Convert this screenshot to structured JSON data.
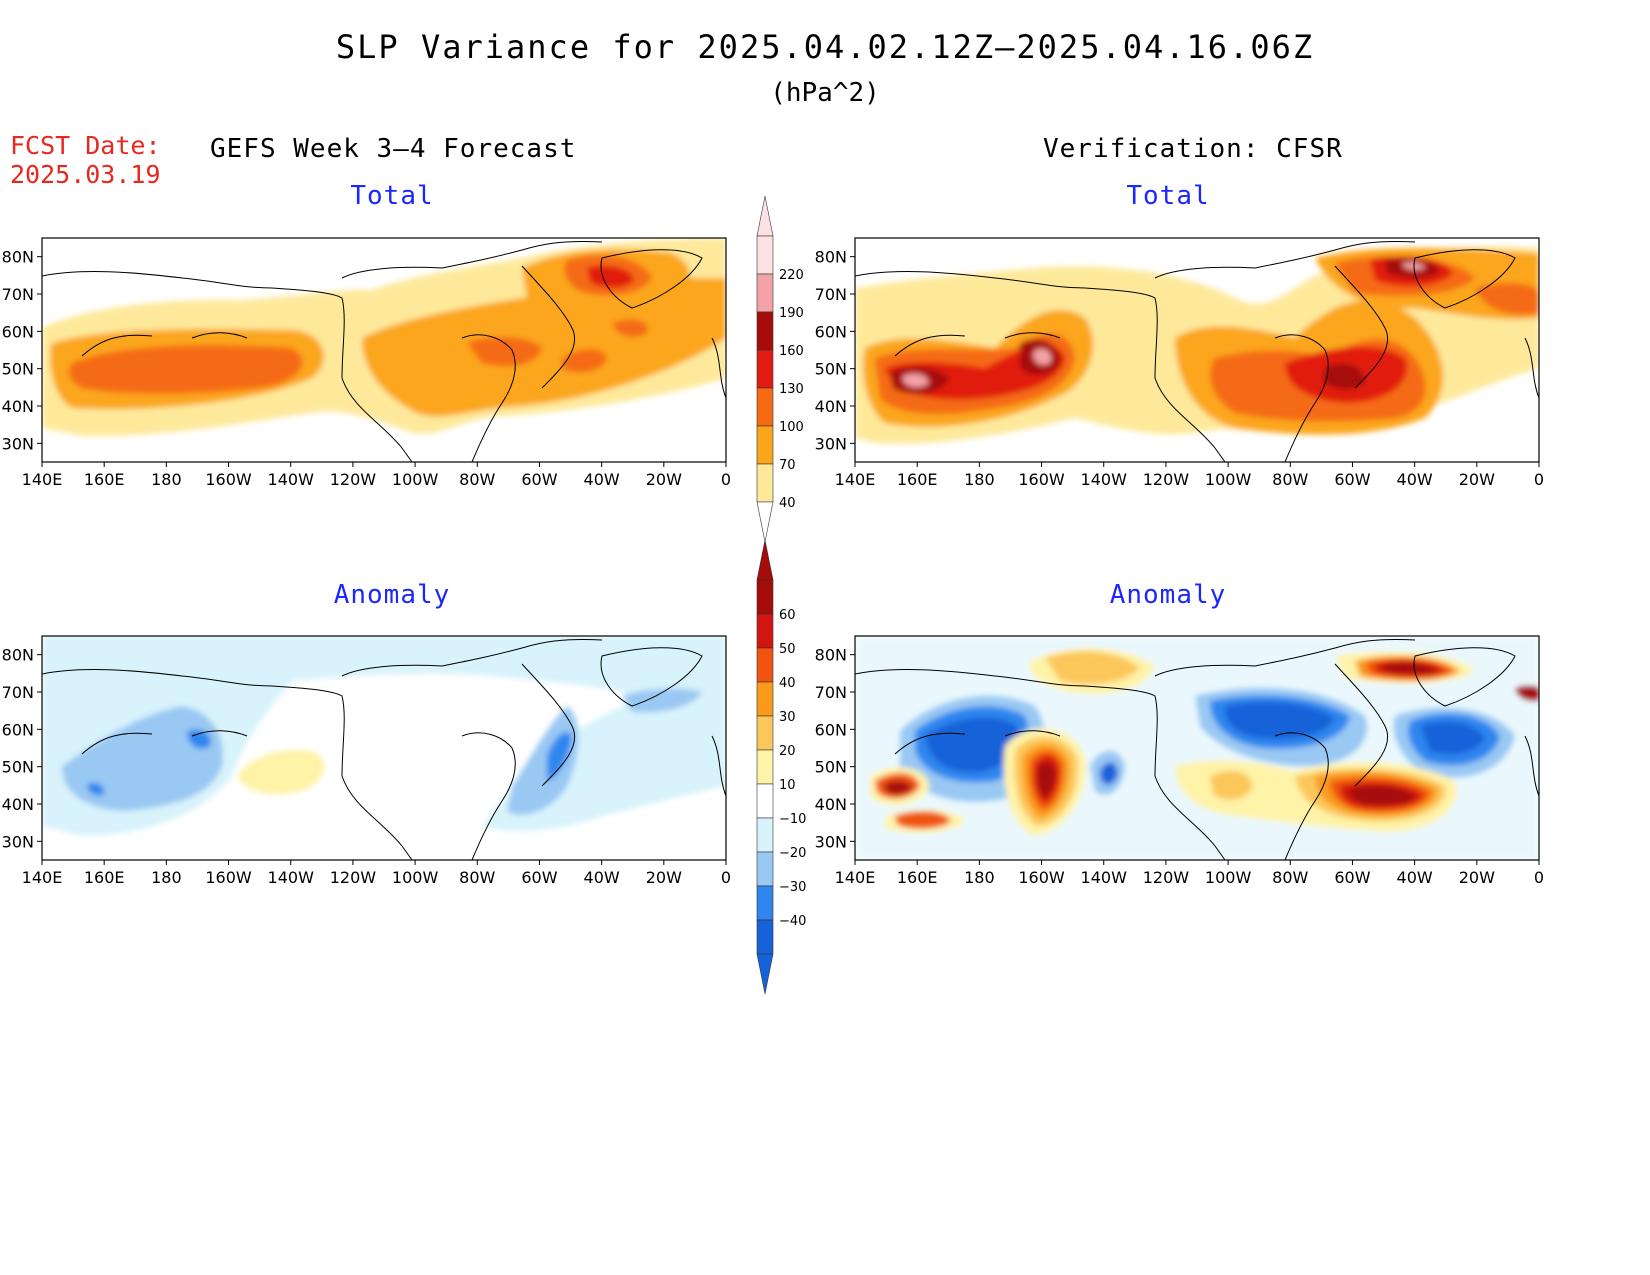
{
  "title": "SLP Variance for 2025.04.02.12Z–2025.04.16.06Z",
  "units": "(hPa^2)",
  "forecast_date": {
    "label": "FCST Date:",
    "value": "2025.03.19"
  },
  "columns": {
    "left": "GEFS Week 3–4 Forecast",
    "right": "Verification: CFSR"
  },
  "panels": {
    "tl": {
      "title": "Total"
    },
    "tr": {
      "title": "Total"
    },
    "bl": {
      "title": "Anomaly"
    },
    "br": {
      "title": "Anomaly"
    }
  },
  "axes": {
    "lat_labels": [
      "80N",
      "70N",
      "60N",
      "50N",
      "40N",
      "30N"
    ],
    "lon_labels": [
      "140E",
      "160E",
      "180",
      "160W",
      "140W",
      "120W",
      "100W",
      "80W",
      "60W",
      "40W",
      "20W",
      "0"
    ]
  },
  "colorbar_total": {
    "labels": [
      "40",
      "70",
      "100",
      "130",
      "160",
      "190",
      "220"
    ],
    "colors": [
      "#fee99b",
      "#fba61a",
      "#f56a12",
      "#e11b10",
      "#a60d0a",
      "#f3a3a6",
      "#fde1e2"
    ]
  },
  "colorbar_anomaly": {
    "labels": [
      "−40",
      "−30",
      "−20",
      "−10",
      "10",
      "20",
      "30",
      "40",
      "50",
      "60"
    ],
    "colors": [
      "#1662d8",
      "#2f86ef",
      "#99c8f3",
      "#d8f3fb",
      "#ffffff",
      "#fff3a8",
      "#fcc75a",
      "#f99a1a",
      "#f15410",
      "#d21510",
      "#a50c0a"
    ]
  },
  "chart_data": [
    {
      "type": "heatmap",
      "panel": "GEFS Week 3–4 Forecast – Total",
      "units": "hPa^2",
      "xrange": [
        "140E",
        "0"
      ],
      "yrange": [
        "25N",
        "85N"
      ],
      "features": [
        {
          "lon": 180,
          "lat": 49,
          "level": 100,
          "note": "North Pacific max"
        },
        {
          "lon": -40,
          "lat": 73,
          "level": 130,
          "note": "Greenland max"
        },
        {
          "lon": -75,
          "lat": 55,
          "level": 100
        },
        {
          "lon": -95,
          "lat": 50,
          "level": 70
        }
      ]
    },
    {
      "type": "heatmap",
      "panel": "Verification: CFSR – Total",
      "units": "hPa^2",
      "xrange": [
        "140E",
        "0"
      ],
      "yrange": [
        "25N",
        "85N"
      ],
      "features": [
        {
          "lon": 160,
          "lat": 45,
          "level": 190
        },
        {
          "lon": -160,
          "lat": 51,
          "level": 190
        },
        {
          "lon": -45,
          "lat": 76,
          "level": 190
        },
        {
          "lon": -55,
          "lat": 45,
          "level": 160
        },
        {
          "lon": -5,
          "lat": 67,
          "level": 130
        }
      ]
    },
    {
      "type": "heatmap",
      "panel": "GEFS Week 3–4 Forecast – Anomaly",
      "units": "hPa^2",
      "xrange": [
        "140E",
        "0"
      ],
      "yrange": [
        "25N",
        "85N"
      ],
      "features": [
        {
          "lon": 175,
          "lat": 52,
          "level": -30
        },
        {
          "lon": -55,
          "lat": 50,
          "level": -30
        },
        {
          "lon": -145,
          "lat": 48,
          "level": 10
        }
      ]
    },
    {
      "type": "heatmap",
      "panel": "Verification: CFSR – Anomaly",
      "units": "hPa^2",
      "xrange": [
        "140E",
        "0"
      ],
      "yrange": [
        "25N",
        "85N"
      ],
      "features": [
        {
          "lon": 175,
          "lat": 57,
          "level": -40
        },
        {
          "lon": -160,
          "lat": 47,
          "level": 60
        },
        {
          "lon": -45,
          "lat": 77,
          "level": 60
        },
        {
          "lon": -45,
          "lat": 43,
          "level": 60
        },
        {
          "lon": -85,
          "lat": 63,
          "level": -40
        },
        {
          "lon": -30,
          "lat": 60,
          "level": -40
        },
        {
          "lon": 155,
          "lat": 47,
          "level": 60
        },
        {
          "lon": -5,
          "lat": 70,
          "level": 60
        }
      ]
    }
  ]
}
